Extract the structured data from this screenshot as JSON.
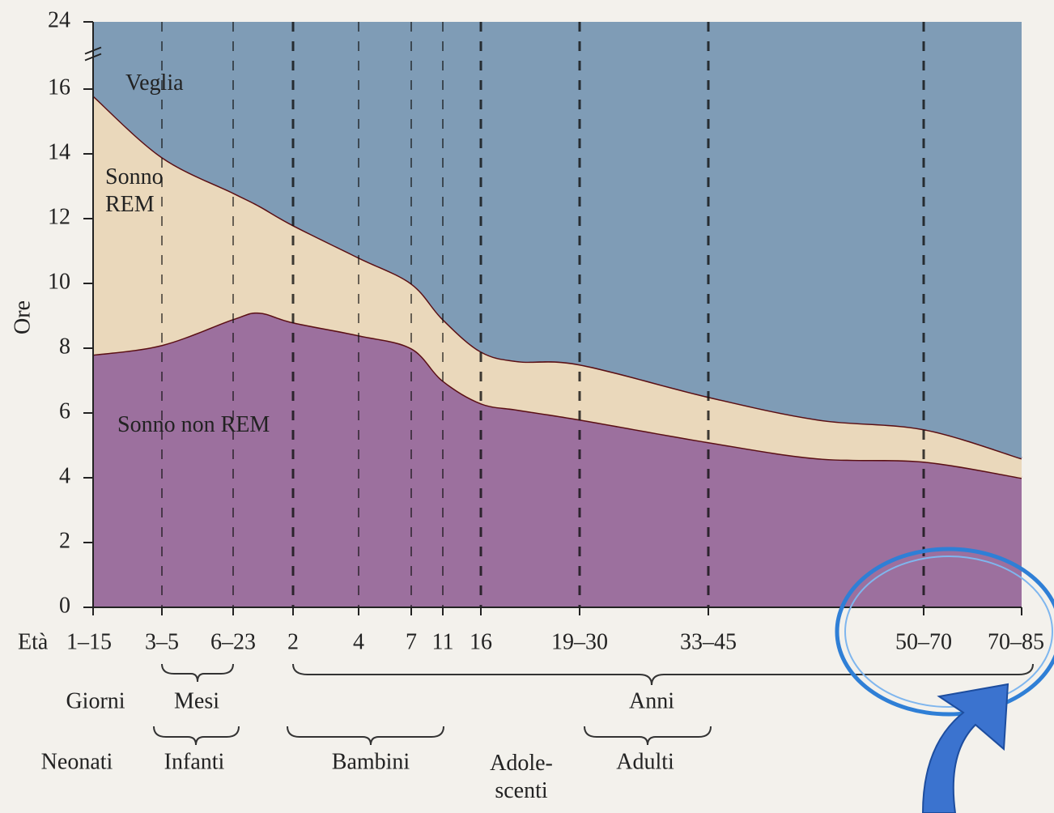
{
  "chart_data": {
    "type": "stacked_area",
    "ylabel": "Ore",
    "xlabel": "Età",
    "categories": [
      "1–15",
      "3–5",
      "6–23",
      null,
      "2",
      "4",
      "7",
      "11",
      "16",
      null,
      "19–30",
      "33–45",
      null,
      "50–70",
      "70–85"
    ],
    "series": [
      {
        "name": "Sonno non REM",
        "color": "#9c709e",
        "values": [
          7.8,
          8.1,
          8.9,
          9.1,
          8.8,
          8.4,
          8.0,
          7.0,
          6.3,
          6.1,
          5.8,
          5.1,
          4.6,
          4.5,
          4.0
        ]
      },
      {
        "name": "Sonno REM",
        "color": "#ead8bb",
        "values": [
          8.0,
          5.8,
          3.9,
          3.3,
          3.0,
          2.4,
          2.0,
          1.9,
          1.6,
          1.5,
          1.7,
          1.4,
          1.2,
          1.0,
          0.6
        ]
      },
      {
        "name": "Veglia",
        "color": "#7f9cb6",
        "values": [
          8.2,
          10.1,
          11.2,
          11.6,
          12.2,
          13.2,
          14.0,
          15.1,
          16.1,
          16.4,
          16.5,
          17.5,
          18.2,
          18.5,
          19.4
        ]
      }
    ],
    "ylim": [
      0,
      24
    ],
    "yticks": [
      0,
      2,
      4,
      6,
      8,
      10,
      12,
      14,
      16,
      24
    ],
    "y_break": [
      16,
      24
    ],
    "units": [
      "Giorni",
      "Mesi",
      "Anni"
    ],
    "groups": [
      "Neonati",
      "Infanti",
      "Bambini",
      "Adole-scenti",
      "Adulti"
    ]
  }
}
